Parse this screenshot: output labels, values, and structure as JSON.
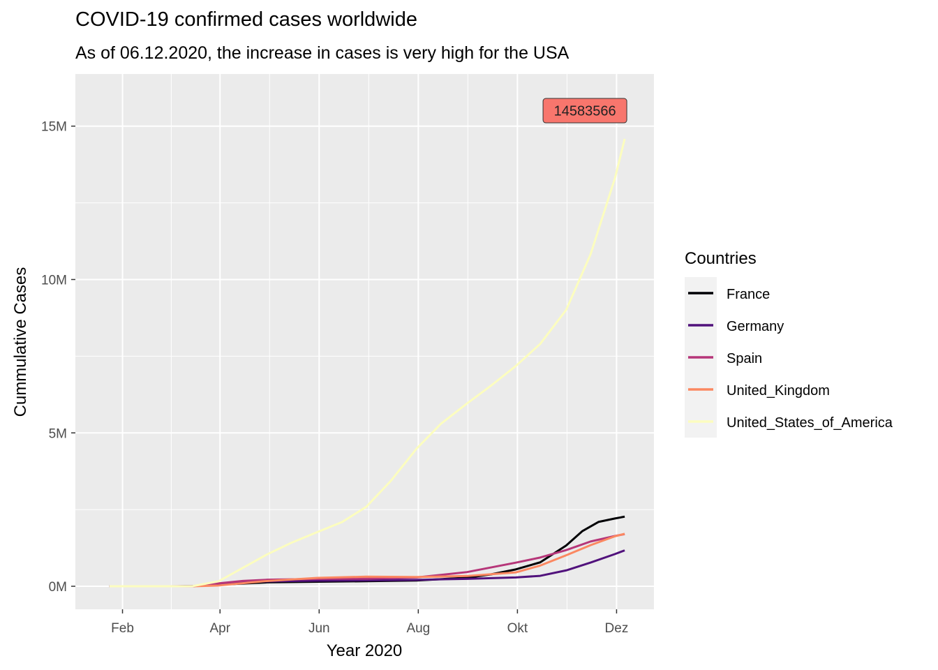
{
  "chart_data": {
    "type": "line",
    "title": "COVID-19 confirmed cases worldwide",
    "subtitle": "As of 06.12.2020, the increase in cases is very high for the USA",
    "xlabel": "Year 2020",
    "ylabel": "Cummulative Cases",
    "x_ticks": [
      {
        "label": "Feb",
        "date": "2020-02-01"
      },
      {
        "label": "Apr",
        "date": "2020-04-01"
      },
      {
        "label": "Jun",
        "date": "2020-06-01"
      },
      {
        "label": "Aug",
        "date": "2020-08-01"
      },
      {
        "label": "Okt",
        "date": "2020-10-01"
      },
      {
        "label": "Dez",
        "date": "2020-12-01"
      }
    ],
    "xlim": [
      "2020-01-03",
      "2020-12-24"
    ],
    "y_ticks": [
      {
        "label": "0M",
        "value": 0
      },
      {
        "label": "5M",
        "value": 5000000
      },
      {
        "label": "10M",
        "value": 10000000
      },
      {
        "label": "15M",
        "value": 15000000
      }
    ],
    "ylim": [
      -750000,
      16700000
    ],
    "grid": true,
    "legend": {
      "title": "Countries",
      "position": "right"
    },
    "series": [
      {
        "name": "France",
        "color": "#000004",
        "points": [
          [
            "2020-01-24",
            0
          ],
          [
            "2020-03-01",
            100
          ],
          [
            "2020-03-15",
            5400
          ],
          [
            "2020-03-31",
            52000
          ],
          [
            "2020-04-30",
            128000
          ],
          [
            "2020-05-31",
            150000
          ],
          [
            "2020-06-30",
            165000
          ],
          [
            "2020-07-31",
            187000
          ],
          [
            "2020-08-31",
            280000
          ],
          [
            "2020-09-15",
            390000
          ],
          [
            "2020-09-30",
            550000
          ],
          [
            "2020-10-15",
            780000
          ],
          [
            "2020-10-31",
            1330000
          ],
          [
            "2020-11-10",
            1800000
          ],
          [
            "2020-11-20",
            2100000
          ],
          [
            "2020-11-30",
            2210000
          ],
          [
            "2020-12-06",
            2270000
          ]
        ]
      },
      {
        "name": "Germany",
        "color": "#51127C",
        "points": [
          [
            "2020-01-24",
            0
          ],
          [
            "2020-03-01",
            120
          ],
          [
            "2020-03-15",
            4600
          ],
          [
            "2020-03-31",
            62000
          ],
          [
            "2020-04-15",
            130000
          ],
          [
            "2020-04-30",
            160000
          ],
          [
            "2020-05-31",
            182000
          ],
          [
            "2020-06-30",
            194000
          ],
          [
            "2020-07-31",
            209000
          ],
          [
            "2020-08-31",
            243000
          ],
          [
            "2020-09-30",
            288000
          ],
          [
            "2020-10-15",
            340000
          ],
          [
            "2020-10-31",
            518000
          ],
          [
            "2020-11-15",
            773000
          ],
          [
            "2020-11-30",
            1050000
          ],
          [
            "2020-12-06",
            1170000
          ]
        ]
      },
      {
        "name": "Spain",
        "color": "#B63679",
        "points": [
          [
            "2020-01-24",
            0
          ],
          [
            "2020-03-01",
            80
          ],
          [
            "2020-03-15",
            7800
          ],
          [
            "2020-03-31",
            94000
          ],
          [
            "2020-04-15",
            174000
          ],
          [
            "2020-04-30",
            213000
          ],
          [
            "2020-05-31",
            240000
          ],
          [
            "2020-06-30",
            249000
          ],
          [
            "2020-07-31",
            288000
          ],
          [
            "2020-08-31",
            463000
          ],
          [
            "2020-09-30",
            770000
          ],
          [
            "2020-10-15",
            937000
          ],
          [
            "2020-10-31",
            1180000
          ],
          [
            "2020-11-15",
            1460000
          ],
          [
            "2020-11-30",
            1640000
          ],
          [
            "2020-12-06",
            1700000
          ]
        ]
      },
      {
        "name": "United_Kingdom",
        "color": "#FB8861",
        "points": [
          [
            "2020-01-24",
            0
          ],
          [
            "2020-03-01",
            30
          ],
          [
            "2020-03-15",
            1400
          ],
          [
            "2020-03-31",
            25000
          ],
          [
            "2020-04-15",
            99000
          ],
          [
            "2020-04-30",
            172000
          ],
          [
            "2020-05-31",
            274000
          ],
          [
            "2020-06-30",
            313000
          ],
          [
            "2020-07-31",
            303000
          ],
          [
            "2020-08-31",
            335000
          ],
          [
            "2020-09-30",
            453000
          ],
          [
            "2020-10-15",
            674000
          ],
          [
            "2020-10-31",
            1010000
          ],
          [
            "2020-11-15",
            1340000
          ],
          [
            "2020-11-30",
            1630000
          ],
          [
            "2020-12-06",
            1710000
          ]
        ]
      },
      {
        "name": "United_States_of_America",
        "color": "#FCFDBF",
        "points": [
          [
            "2020-01-24",
            0
          ],
          [
            "2020-03-01",
            70
          ],
          [
            "2020-03-15",
            3500
          ],
          [
            "2020-03-31",
            160000
          ],
          [
            "2020-04-15",
            600000
          ],
          [
            "2020-04-30",
            1040000
          ],
          [
            "2020-05-15",
            1420000
          ],
          [
            "2020-05-31",
            1770000
          ],
          [
            "2020-06-15",
            2090000
          ],
          [
            "2020-06-30",
            2590000
          ],
          [
            "2020-07-15",
            3430000
          ],
          [
            "2020-07-31",
            4490000
          ],
          [
            "2020-08-15",
            5300000
          ],
          [
            "2020-08-31",
            5960000
          ],
          [
            "2020-09-15",
            6550000
          ],
          [
            "2020-09-30",
            7180000
          ],
          [
            "2020-10-15",
            7900000
          ],
          [
            "2020-10-31",
            9010000
          ],
          [
            "2020-11-15",
            10820000
          ],
          [
            "2020-11-30",
            13300000
          ],
          [
            "2020-12-06",
            14583566
          ]
        ]
      }
    ],
    "annotation": {
      "text": "14583566",
      "date": "2020-12-06",
      "value": 14583566,
      "fill": "#F8766D"
    }
  }
}
